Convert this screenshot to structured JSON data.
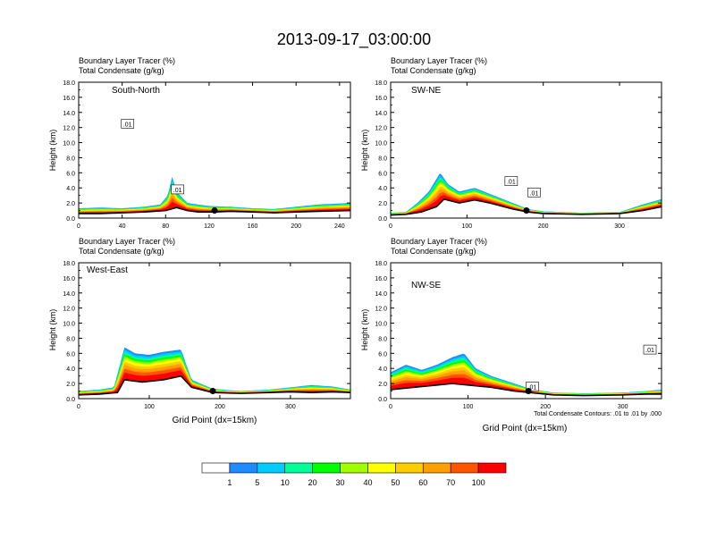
{
  "figure": {
    "title": "2013-09-17_03:00:00",
    "footnote": "Total Condensate Contours: .01 to .01 by .000"
  },
  "colorbar": {
    "colors": [
      "#ffffff",
      "#1e8cff",
      "#00ccff",
      "#00ff99",
      "#00ff00",
      "#a0ff00",
      "#ffff00",
      "#ffcc00",
      "#ffa000",
      "#ff5500",
      "#ff0000"
    ],
    "tick_labels": [
      "1",
      "5",
      "10",
      "20",
      "30",
      "40",
      "50",
      "60",
      "70",
      "100"
    ]
  },
  "chart_data": [
    {
      "type": "heatmap",
      "panel_label": "South-North",
      "subtitle_1": "Boundary Layer Tracer   (%)",
      "subtitle_2": "Total Condensate   (g/kg)",
      "ylabel": "Height (km)",
      "xlabel": "",
      "xlim": [
        0,
        250
      ],
      "ylim": [
        0,
        18
      ],
      "x_ticks": [
        0,
        40,
        80,
        120,
        160,
        200,
        240
      ],
      "y_ticks": [
        "0.0",
        "2.0",
        "4.0",
        "6.0",
        "8.0",
        "10.0",
        "12.0",
        "14.0",
        "16.0",
        "18.0"
      ],
      "marker_x": 125,
      "terrain": [
        [
          0,
          0.6
        ],
        [
          20,
          0.6
        ],
        [
          40,
          0.7
        ],
        [
          60,
          0.8
        ],
        [
          80,
          1.0
        ],
        [
          90,
          1.4
        ],
        [
          100,
          1.0
        ],
        [
          110,
          0.8
        ],
        [
          125,
          0.8
        ],
        [
          140,
          0.9
        ],
        [
          160,
          0.8
        ],
        [
          180,
          0.7
        ],
        [
          200,
          0.8
        ],
        [
          220,
          0.9
        ],
        [
          250,
          1.0
        ]
      ],
      "tracer_top": [
        [
          0,
          1.3
        ],
        [
          20,
          1.4
        ],
        [
          40,
          1.3
        ],
        [
          60,
          1.5
        ],
        [
          75,
          1.8
        ],
        [
          82,
          3.0
        ],
        [
          86,
          5.5
        ],
        [
          90,
          3.5
        ],
        [
          100,
          2.0
        ],
        [
          120,
          1.6
        ],
        [
          140,
          1.5
        ],
        [
          160,
          1.3
        ],
        [
          180,
          1.2
        ],
        [
          200,
          1.5
        ],
        [
          220,
          1.8
        ],
        [
          250,
          2.0
        ]
      ],
      "contour_labels": [
        {
          "text": ".01",
          "x": 45,
          "y": 12.5
        },
        {
          "text": ".01",
          "x": 91,
          "y": 3.8
        }
      ]
    },
    {
      "type": "heatmap",
      "panel_label": "SW-NE",
      "subtitle_1": "Boundary Layer Tracer   (%)",
      "subtitle_2": "Total Condensate   (g/kg)",
      "ylabel": "Height (km)",
      "xlabel": "",
      "xlim": [
        0,
        355
      ],
      "ylim": [
        0,
        18
      ],
      "x_ticks": [
        0,
        100,
        200,
        300
      ],
      "y_ticks": [
        "0.0",
        "2.0",
        "4.0",
        "6.0",
        "8.0",
        "10.0",
        "12.0",
        "14.0",
        "16.0",
        "18.0"
      ],
      "marker_x": 178,
      "terrain": [
        [
          0,
          0.4
        ],
        [
          20,
          0.5
        ],
        [
          40,
          0.8
        ],
        [
          60,
          1.5
        ],
        [
          70,
          2.5
        ],
        [
          90,
          2.0
        ],
        [
          110,
          2.4
        ],
        [
          130,
          2.0
        ],
        [
          160,
          1.2
        ],
        [
          180,
          0.8
        ],
        [
          200,
          0.6
        ],
        [
          250,
          0.5
        ],
        [
          300,
          0.6
        ],
        [
          330,
          1.0
        ],
        [
          355,
          1.5
        ]
      ],
      "tracer_top": [
        [
          0,
          0.7
        ],
        [
          20,
          0.8
        ],
        [
          35,
          2.0
        ],
        [
          50,
          3.5
        ],
        [
          65,
          6.0
        ],
        [
          75,
          4.5
        ],
        [
          90,
          3.5
        ],
        [
          110,
          4.0
        ],
        [
          130,
          3.2
        ],
        [
          160,
          2.0
        ],
        [
          180,
          1.2
        ],
        [
          200,
          0.9
        ],
        [
          250,
          0.7
        ],
        [
          300,
          0.8
        ],
        [
          330,
          1.8
        ],
        [
          355,
          2.5
        ]
      ],
      "contour_labels": [
        {
          "text": ".01",
          "x": 158,
          "y": 4.9
        },
        {
          "text": ".01",
          "x": 188,
          "y": 3.4
        }
      ]
    },
    {
      "type": "heatmap",
      "panel_label": "West-East",
      "subtitle_1": "Boundary Layer Tracer   (%)",
      "subtitle_2": "Total Condensate   (g/kg)",
      "ylabel": "Height (km)",
      "xlabel": "Grid Point (dx=15km)",
      "xlim": [
        0,
        385
      ],
      "ylim": [
        0,
        18
      ],
      "x_ticks": [
        0,
        100,
        200,
        300
      ],
      "y_ticks": [
        "0.0",
        "2.0",
        "4.0",
        "6.0",
        "8.0",
        "10.0",
        "12.0",
        "14.0",
        "16.0",
        "18.0"
      ],
      "marker_x": 190,
      "terrain": [
        [
          0,
          0.5
        ],
        [
          30,
          0.6
        ],
        [
          55,
          0.8
        ],
        [
          65,
          2.5
        ],
        [
          90,
          2.2
        ],
        [
          120,
          2.5
        ],
        [
          145,
          3.0
        ],
        [
          160,
          1.5
        ],
        [
          190,
          0.8
        ],
        [
          230,
          0.7
        ],
        [
          270,
          0.8
        ],
        [
          300,
          0.9
        ],
        [
          330,
          0.8
        ],
        [
          360,
          0.9
        ],
        [
          385,
          0.8
        ]
      ],
      "tracer_top": [
        [
          0,
          1.0
        ],
        [
          30,
          1.2
        ],
        [
          50,
          1.5
        ],
        [
          65,
          6.8
        ],
        [
          80,
          6.0
        ],
        [
          100,
          5.8
        ],
        [
          120,
          6.2
        ],
        [
          145,
          6.5
        ],
        [
          160,
          2.5
        ],
        [
          190,
          1.3
        ],
        [
          230,
          1.0
        ],
        [
          270,
          1.2
        ],
        [
          300,
          1.5
        ],
        [
          330,
          1.8
        ],
        [
          360,
          1.6
        ],
        [
          385,
          1.2
        ]
      ],
      "contour_labels": []
    },
    {
      "type": "heatmap",
      "panel_label": "NW-SE",
      "subtitle_1": "Boundary Layer Tracer   (%)",
      "subtitle_2": "Total Condensate   (g/kg)",
      "ylabel": "Height (km)",
      "xlabel": "Grid Point (dx=15km)",
      "xlim": [
        0,
        350
      ],
      "ylim": [
        0,
        18
      ],
      "x_ticks": [
        0,
        100,
        200,
        300
      ],
      "y_ticks": [
        "0.0",
        "2.0",
        "4.0",
        "6.0",
        "8.0",
        "10.0",
        "12.0",
        "14.0",
        "16.0",
        "18.0"
      ],
      "marker_x": 178,
      "terrain": [
        [
          0,
          1.2
        ],
        [
          30,
          1.5
        ],
        [
          60,
          1.8
        ],
        [
          80,
          2.0
        ],
        [
          100,
          1.8
        ],
        [
          130,
          1.5
        ],
        [
          160,
          1.0
        ],
        [
          180,
          0.8
        ],
        [
          210,
          0.5
        ],
        [
          250,
          0.4
        ],
        [
          300,
          0.5
        ],
        [
          330,
          0.6
        ],
        [
          350,
          0.6
        ]
      ],
      "tracer_top": [
        [
          0,
          3.5
        ],
        [
          20,
          4.5
        ],
        [
          40,
          3.8
        ],
        [
          60,
          4.5
        ],
        [
          80,
          5.5
        ],
        [
          95,
          6.0
        ],
        [
          110,
          4.0
        ],
        [
          130,
          3.0
        ],
        [
          160,
          2.0
        ],
        [
          180,
          1.3
        ],
        [
          210,
          0.8
        ],
        [
          250,
          0.7
        ],
        [
          300,
          0.8
        ],
        [
          330,
          1.0
        ],
        [
          350,
          1.2
        ]
      ],
      "contour_labels": [
        {
          "text": ".01",
          "x": 335,
          "y": 6.5
        },
        {
          "text": ".01",
          "x": 183,
          "y": 1.6
        }
      ]
    }
  ]
}
